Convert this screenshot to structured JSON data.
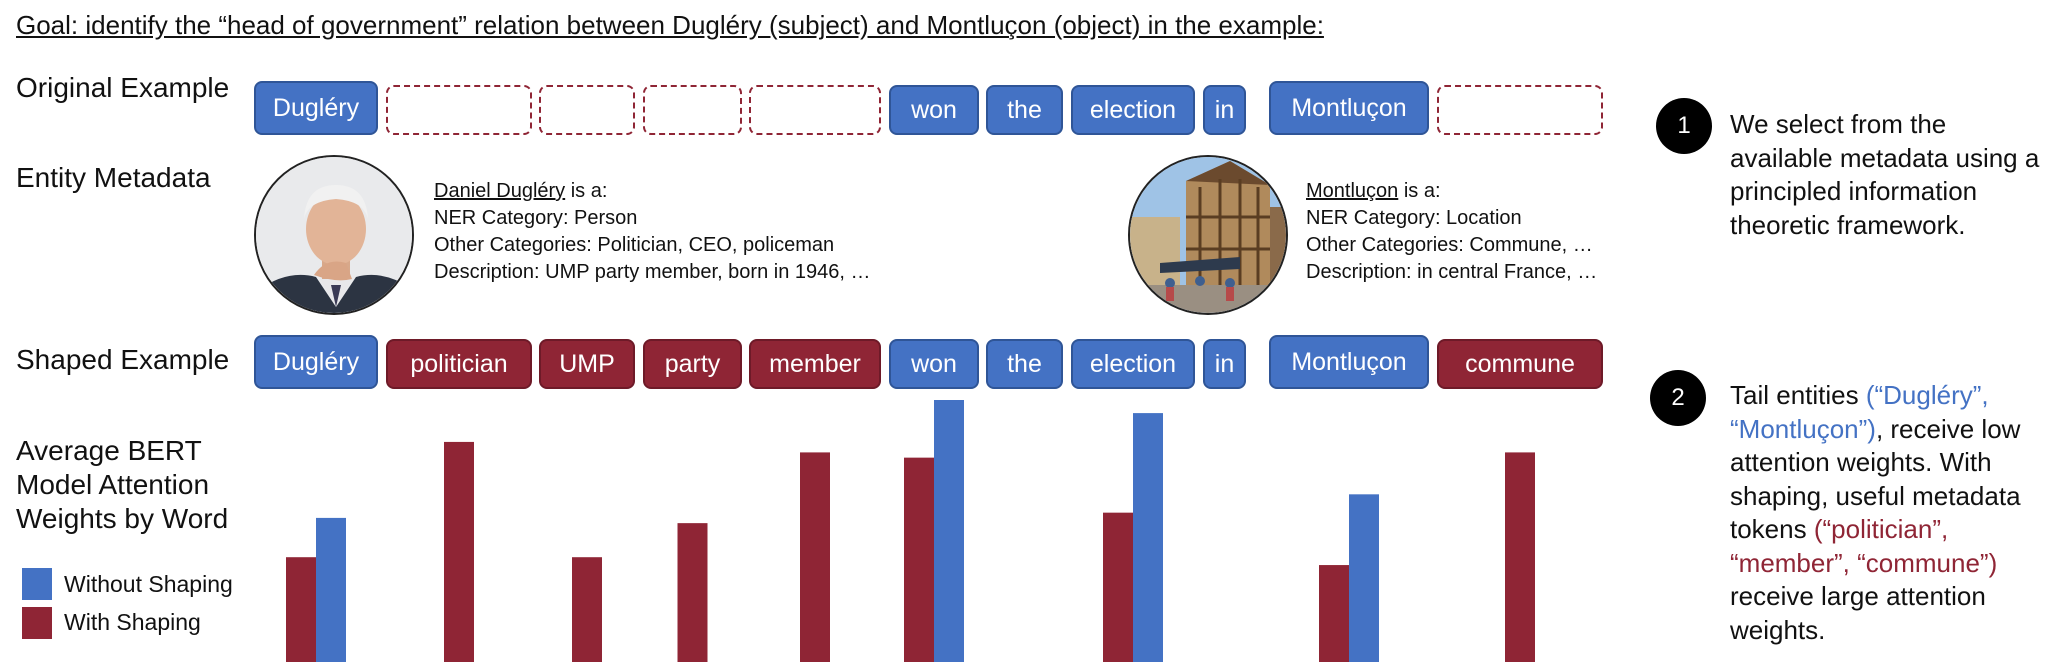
{
  "goal_text": "Goal: identify the “head of government” relation between Dugléry (subject) and Montluçon (object) in the example:",
  "labels": {
    "original": "Original Example",
    "metadata": "Entity Metadata",
    "shaped": "Shaped Example",
    "chart_title": [
      "Average BERT",
      "Model Attention",
      "Weights by Word"
    ]
  },
  "original_tokens": [
    {
      "text": "Dugléry",
      "kind": "entity"
    },
    {
      "text": "",
      "kind": "empty"
    },
    {
      "text": "",
      "kind": "empty"
    },
    {
      "text": "",
      "kind": "empty"
    },
    {
      "text": "",
      "kind": "empty"
    },
    {
      "text": "won",
      "kind": "word"
    },
    {
      "text": "the",
      "kind": "word"
    },
    {
      "text": "election",
      "kind": "word"
    },
    {
      "text": "in",
      "kind": "word"
    },
    {
      "text": "Montluçon",
      "kind": "entity"
    },
    {
      "text": "",
      "kind": "empty"
    }
  ],
  "shaped_tokens": [
    {
      "text": "Dugléry",
      "kind": "entity"
    },
    {
      "text": "politician",
      "kind": "meta"
    },
    {
      "text": "UMP",
      "kind": "meta"
    },
    {
      "text": "party",
      "kind": "meta"
    },
    {
      "text": "member",
      "kind": "meta"
    },
    {
      "text": "won",
      "kind": "word"
    },
    {
      "text": "the",
      "kind": "word"
    },
    {
      "text": "election",
      "kind": "word"
    },
    {
      "text": "in",
      "kind": "word"
    },
    {
      "text": "Montluçon",
      "kind": "entity"
    },
    {
      "text": "commune",
      "kind": "meta"
    }
  ],
  "entities": {
    "left": {
      "name": "Daniel Dugléry",
      "is_a": " is a:",
      "ner_label": "NER Category",
      "ner_value": ": Person",
      "other_label": "Other Categories",
      "other_value": ": Politician, CEO, policeman",
      "desc_label": "Description",
      "desc_value": ":  UMP party member, born in 1946, …"
    },
    "right": {
      "name": "Montluçon",
      "is_a": " is a:",
      "ner_label": "NER Category",
      "ner_value": ": Location",
      "other_label": "Other Categories",
      "other_value": ": Commune, …",
      "desc_label": "Description",
      "desc_value": ": in central France, …"
    }
  },
  "steps": [
    {
      "number": "1",
      "text": "We select from the available metadata using a principled information theoretic framework."
    },
    {
      "number": "2",
      "p1": "Tail entities ",
      "h1": "(“Dugléry”, “Montluçon”)",
      "p2": ", receive low attention weights. With shaping, useful metadata tokens ",
      "h2": "(“politician”, “member”, “commune”)",
      "p3": " receive large attention weights."
    }
  ],
  "legend": {
    "without": {
      "label": "Without  Shaping",
      "color": "#4472c4"
    },
    "with": {
      "label": "With Shaping",
      "color": "#8f2535"
    }
  },
  "colors": {
    "entity": "#4472c4",
    "metadata": "#8f2535"
  },
  "chart_data": {
    "type": "bar",
    "categories": [
      "Dugléry",
      "politician",
      "UMP",
      "party",
      "member",
      "won",
      "the",
      "election",
      "in",
      "Montluçon",
      "commune"
    ],
    "series": [
      {
        "name": "Without  Shaping",
        "values": [
          0.55,
          null,
          null,
          null,
          null,
          1.0,
          null,
          0.95,
          null,
          0.64,
          null
        ]
      },
      {
        "name": "With Shaping",
        "values": [
          0.4,
          0.84,
          0.4,
          0.53,
          0.8,
          0.78,
          null,
          0.57,
          null,
          0.37,
          0.8
        ]
      }
    ],
    "ylim": [
      0,
      1
    ]
  }
}
